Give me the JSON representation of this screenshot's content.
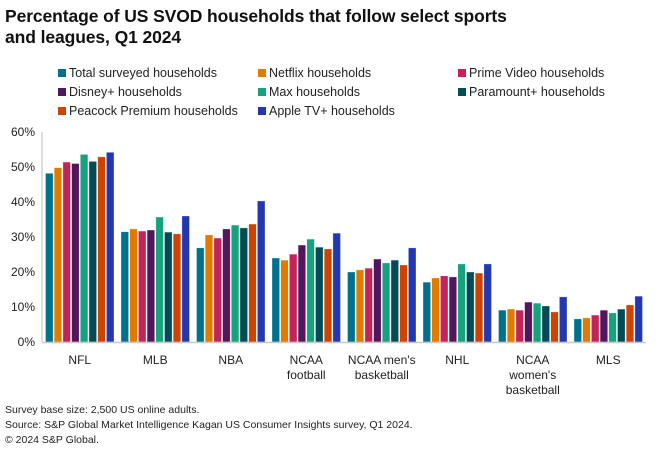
{
  "chart_data": {
    "type": "bar",
    "title": "Percentage of US SVOD households that follow select sports and leagues, Q1 2024",
    "title_lines": [
      "Percentage of US SVOD households that follow select sports",
      "and leagues, Q1 2024"
    ],
    "xlabel": "",
    "ylabel": "",
    "ylim": [
      0,
      60
    ],
    "yticks": [
      0,
      10,
      20,
      30,
      40,
      50,
      60
    ],
    "ytick_labels": [
      "0%",
      "10%",
      "20%",
      "30%",
      "40%",
      "50%",
      "60%"
    ],
    "grid": false,
    "legend_position": "top",
    "categories": [
      "NFL",
      "MLB",
      "NBA",
      "NCAA football",
      "NCAA men's basketball",
      "NHL",
      "NCAA women's basketball",
      "MLS"
    ],
    "category_label_lines": [
      [
        "NFL"
      ],
      [
        "MLB"
      ],
      [
        "NBA"
      ],
      [
        "NCAA",
        "football"
      ],
      [
        "NCAA men's",
        "basketball"
      ],
      [
        "NHL"
      ],
      [
        "NCAA",
        "women's",
        "basketball"
      ],
      [
        "MLS"
      ]
    ],
    "series": [
      {
        "name": "Total surveyed households",
        "color": "#00718C",
        "values": [
          48.2,
          31.5,
          26.9,
          24.0,
          20.0,
          17.1,
          9.1,
          6.6
        ]
      },
      {
        "name": "Netflix households",
        "color": "#E07B00",
        "values": [
          49.8,
          32.3,
          30.6,
          23.4,
          20.6,
          18.3,
          9.4,
          6.9
        ]
      },
      {
        "name": "Prime Video households",
        "color": "#C2245A",
        "values": [
          51.4,
          31.7,
          29.7,
          25.1,
          21.1,
          18.9,
          9.1,
          7.7
        ]
      },
      {
        "name": "Disney+ households",
        "color": "#52165E",
        "values": [
          51.0,
          32.0,
          32.3,
          27.7,
          23.7,
          18.6,
          11.4,
          9.1
        ]
      },
      {
        "name": "Max households",
        "color": "#15A27E",
        "values": [
          53.6,
          35.7,
          33.4,
          29.4,
          22.6,
          22.3,
          11.1,
          8.3
        ]
      },
      {
        "name": "Paramount+ households",
        "color": "#034B57",
        "values": [
          51.6,
          31.4,
          32.6,
          27.1,
          23.4,
          20.0,
          10.3,
          9.4
        ]
      },
      {
        "name": "Peacock Premium households",
        "color": "#CC4400",
        "values": [
          52.9,
          30.9,
          33.7,
          26.6,
          22.0,
          19.7,
          8.6,
          10.6
        ]
      },
      {
        "name": "Apple TV+ households",
        "color": "#2237B0",
        "values": [
          54.2,
          36.0,
          40.3,
          31.1,
          26.9,
          22.3,
          12.9,
          13.1
        ]
      }
    ]
  },
  "footer": {
    "line1": "Survey base size: 2,500 US online adults.",
    "line2": "Source: S&P Global Market Intelligence Kagan US Consumer Insights survey, Q1 2024.",
    "line3": "© 2024 S&P Global."
  }
}
